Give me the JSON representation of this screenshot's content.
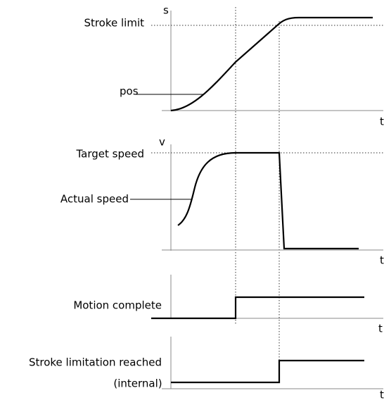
{
  "axes": [
    {
      "y_label": "s",
      "x_label": "t"
    },
    {
      "y_label": "v",
      "x_label": "t"
    },
    {
      "x_label": "t"
    },
    {
      "x_label": "t"
    }
  ],
  "labels": {
    "stroke_limit": "Stroke limit",
    "pos": "pos",
    "target_speed": "Target speed",
    "actual_speed": "Actual speed",
    "motion_complete": "Motion complete",
    "stroke_limitation_reached": "Stroke limitation reached",
    "internal": "(internal)"
  }
}
